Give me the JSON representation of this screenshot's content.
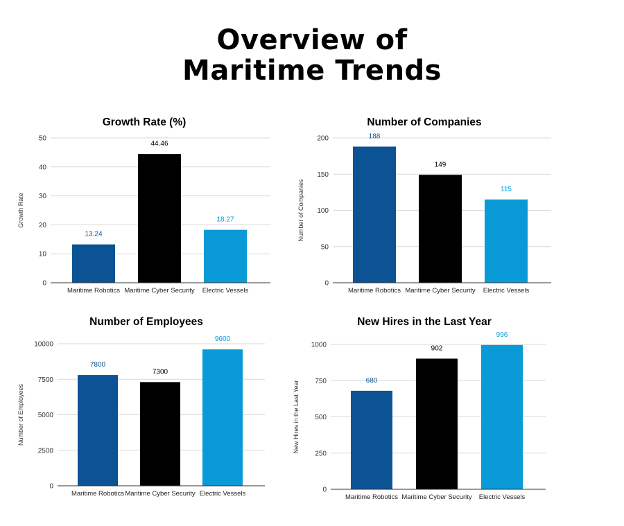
{
  "page": {
    "title_line1": "Overview of",
    "title_line2": "Maritime Trends"
  },
  "chart_data": [
    {
      "type": "bar",
      "title": "Growth Rate (%)",
      "xlabel": "",
      "ylabel": "Growth Rate",
      "categories": [
        "Maritime Robotics",
        "Maritime Cyber Security",
        "Electric Vessels"
      ],
      "values": [
        13.24,
        44.46,
        18.27
      ],
      "data_labels": [
        "13.24",
        "44.46",
        "18.27"
      ],
      "colors": [
        "#0b5394",
        "#000000",
        "#0a9ad7"
      ],
      "label_colors": [
        "#0b5394",
        "#000000",
        "#0a9ad7"
      ],
      "ylim": [
        0,
        50
      ],
      "yticks": [
        0,
        10,
        20,
        30,
        40,
        50
      ],
      "grid": true
    },
    {
      "type": "bar",
      "title": "Number of Companies",
      "xlabel": "",
      "ylabel": "Number of Companies",
      "categories": [
        "Maritime Robotics",
        "Maritime Cyber Security",
        "Electric Vessels"
      ],
      "values": [
        188,
        149,
        115
      ],
      "data_labels": [
        "188",
        "149",
        "115"
      ],
      "colors": [
        "#0b5394",
        "#000000",
        "#0a9ad7"
      ],
      "label_colors": [
        "#0b5394",
        "#000000",
        "#0a9ad7"
      ],
      "ylim": [
        0,
        200
      ],
      "yticks": [
        0,
        50,
        100,
        150,
        200
      ],
      "grid": true
    },
    {
      "type": "bar",
      "title": "Number of Employees",
      "xlabel": "",
      "ylabel": "Number of Employees",
      "categories": [
        "Maritime Robotics",
        "Maritime Cyber Security",
        "Electric Vessels"
      ],
      "values": [
        7800,
        7300,
        9600
      ],
      "data_labels": [
        "7800",
        "7300",
        "9600"
      ],
      "colors": [
        "#0b5394",
        "#000000",
        "#0a9ad7"
      ],
      "label_colors": [
        "#0b5394",
        "#000000",
        "#0a9ad7"
      ],
      "ylim": [
        0,
        10000
      ],
      "yticks": [
        0,
        2500,
        5000,
        7500,
        10000
      ],
      "grid": true
    },
    {
      "type": "bar",
      "title": "New Hires in the Last Year",
      "xlabel": "",
      "ylabel": "New Hires in the Last Year",
      "categories": [
        "Maritime Robotics",
        "Maritime Cyber Security",
        "Electric Vessels"
      ],
      "values": [
        680,
        902,
        996
      ],
      "data_labels": [
        "680",
        "902",
        "996"
      ],
      "colors": [
        "#0b5394",
        "#000000",
        "#0a9ad7"
      ],
      "label_colors": [
        "#0b5394",
        "#000000",
        "#0a9ad7"
      ],
      "ylim": [
        0,
        1000
      ],
      "yticks": [
        0,
        250,
        500,
        750,
        1000
      ],
      "grid": true
    }
  ]
}
